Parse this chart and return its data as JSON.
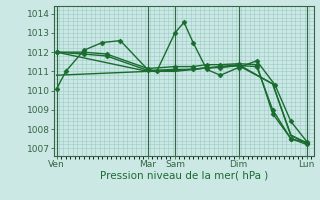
{
  "xlabel": "Pression niveau de la mer( hPa )",
  "bg_color": "#cce8e4",
  "grid_color": "#99ccc4",
  "line_color": "#1a6b30",
  "vline_color": "#336644",
  "ylim": [
    1006.6,
    1014.4
  ],
  "yticks": [
    1007,
    1008,
    1009,
    1010,
    1011,
    1012,
    1013,
    1014
  ],
  "xlim": [
    -1,
    113
  ],
  "vlines": [
    0,
    40,
    52,
    80,
    110
  ],
  "xtick_positions": [
    0,
    40,
    52,
    80,
    110
  ],
  "xtick_labels": [
    "Ven",
    "Mar",
    "Sam",
    "Dim",
    "Lun"
  ],
  "series": [
    {
      "x": [
        0,
        4,
        12,
        20,
        28,
        40,
        44,
        52,
        56,
        60,
        66,
        72,
        80,
        88,
        96,
        103,
        110
      ],
      "y": [
        1010.1,
        1011.0,
        1012.1,
        1012.5,
        1012.6,
        1011.1,
        1011.0,
        1013.0,
        1013.55,
        1012.5,
        1011.1,
        1010.8,
        1011.2,
        1011.55,
        1010.3,
        1008.4,
        1007.35
      ],
      "marker": "D",
      "markersize": 2.5,
      "lw": 1.0
    },
    {
      "x": [
        0,
        12,
        22,
        40,
        52,
        60,
        66,
        72,
        80,
        88,
        95,
        103,
        110
      ],
      "y": [
        1012.0,
        1012.0,
        1011.9,
        1011.15,
        1011.25,
        1011.25,
        1011.35,
        1011.35,
        1011.4,
        1011.35,
        1008.8,
        1007.5,
        1007.2
      ],
      "marker": "D",
      "markersize": 2.5,
      "lw": 1.0
    },
    {
      "x": [
        0,
        12,
        22,
        40,
        52,
        60,
        66,
        72,
        80,
        88,
        95,
        103,
        110
      ],
      "y": [
        1012.0,
        1011.9,
        1011.8,
        1011.05,
        1011.1,
        1011.1,
        1011.2,
        1011.2,
        1011.3,
        1011.25,
        1009.0,
        1007.5,
        1007.3
      ],
      "marker": "D",
      "markersize": 2.5,
      "lw": 1.0
    },
    {
      "x": [
        0,
        40,
        52,
        80,
        95,
        103,
        110
      ],
      "y": [
        1012.0,
        1011.0,
        1011.0,
        1011.35,
        1010.35,
        1007.65,
        1007.3
      ],
      "marker": null,
      "markersize": 0,
      "lw": 1.0
    },
    {
      "x": [
        0,
        40,
        52,
        80,
        95,
        103,
        110
      ],
      "y": [
        1010.8,
        1011.0,
        1011.05,
        1011.3,
        1010.35,
        1007.7,
        1007.25
      ],
      "marker": null,
      "markersize": 0,
      "lw": 1.0
    }
  ]
}
